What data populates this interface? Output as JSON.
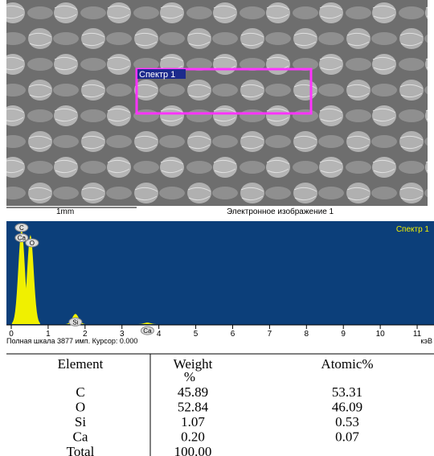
{
  "image": {
    "region_label": "Спектр 1",
    "scale_label": "1mm",
    "caption": "Электронное изображение 1"
  },
  "spectrum": {
    "label": "Спектр 1",
    "xlim": [
      0,
      11.5
    ],
    "ylim": [
      0,
      3877
    ],
    "xticks": [
      0,
      1,
      2,
      3,
      4,
      5,
      6,
      7,
      8,
      9,
      10,
      11
    ],
    "unit": "кэВ",
    "footer": "Полная шкала 3877 имп. Курсор: 0.000",
    "color": "#f0f000",
    "peaks": [
      {
        "label": "Ca",
        "x": 0.28,
        "counts": 3700
      },
      {
        "label": "C",
        "x": 0.28,
        "counts": 3700
      },
      {
        "label": "O",
        "x": 0.52,
        "counts": 3500
      },
      {
        "label": "Si",
        "x": 1.74,
        "counts": 400
      },
      {
        "label": "Ca",
        "x": 3.69,
        "counts": 60
      }
    ]
  },
  "table": {
    "header": [
      "Element",
      "Weight",
      "%",
      "Atomic%"
    ],
    "rows": [
      [
        "C",
        "45.89",
        "53.31"
      ],
      [
        "O",
        "52.84",
        "46.09"
      ],
      [
        "Si",
        "1.07",
        "0.53"
      ],
      [
        "Ca",
        "0.20",
        "0.07"
      ],
      [
        "Total",
        "100.00"
      ]
    ]
  }
}
